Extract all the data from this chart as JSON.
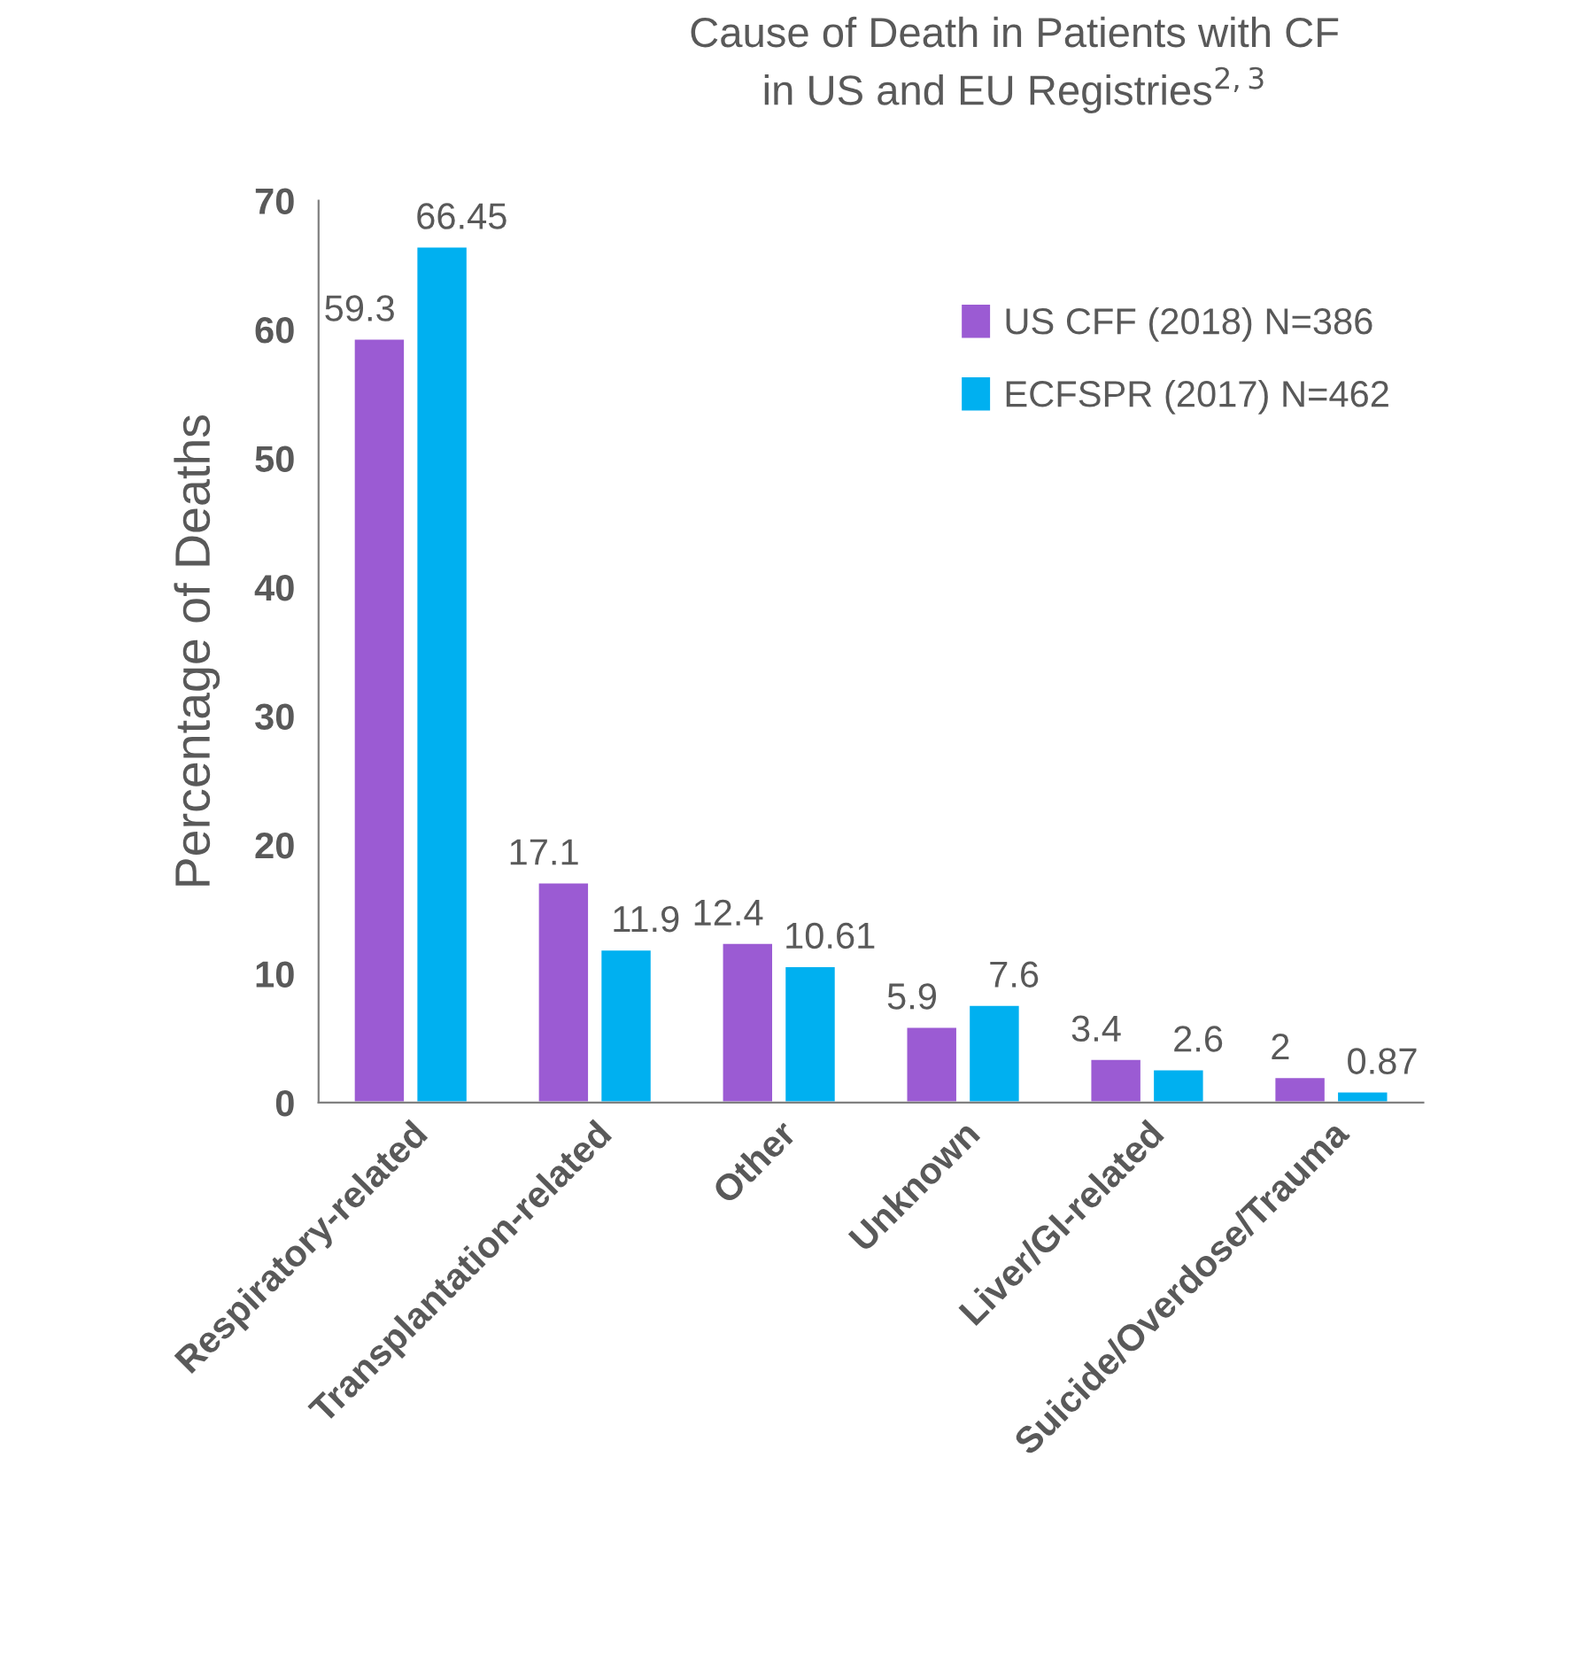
{
  "chart_data": {
    "type": "bar",
    "title": "Cause of Death in Patients with CF\nin US and EU Registries$^{2,3}$",
    "ylabel": "Percentage of Deaths",
    "categories": [
      "Respiratory-related",
      "Transplantation-related",
      "Other",
      "Unknown",
      "Liver/GI-related",
      "Suicide/Overdose/Trauma"
    ],
    "series": [
      {
        "name": "US CFF (2018) N=386",
        "color": "#9b5bd3",
        "values": [
          59.3,
          17.1,
          12.4,
          5.9,
          3.4,
          2
        ]
      },
      {
        "name": "ECFSPR (2017) N=462",
        "color": "#00b0f0",
        "values": [
          66.45,
          11.9,
          10.61,
          7.6,
          2.6,
          0.87
        ]
      }
    ],
    "ylim": [
      0,
      70
    ],
    "yticks": [
      0,
      10,
      20,
      30,
      40,
      50,
      60,
      70
    ],
    "grid": false,
    "legend": "top right",
    "data_labels": true
  }
}
